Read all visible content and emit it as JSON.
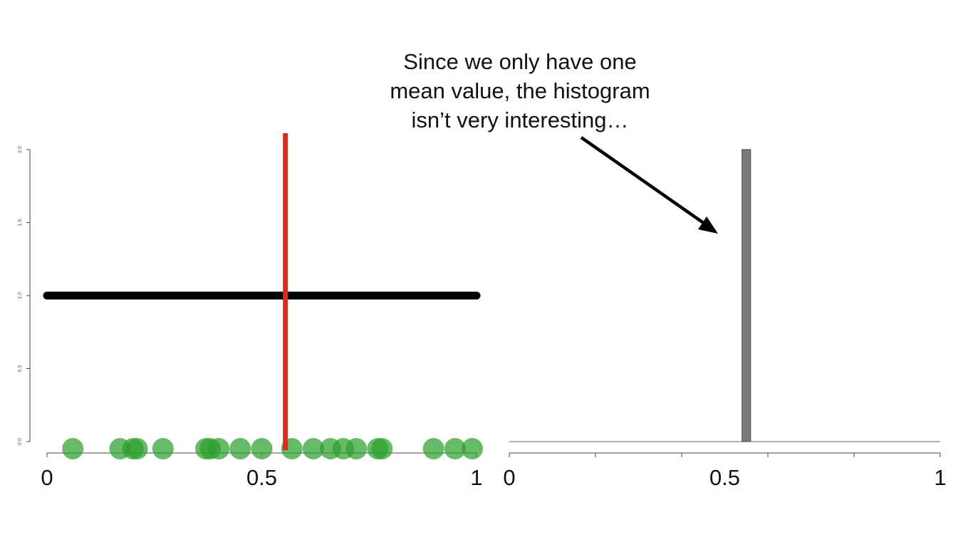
{
  "annotation": {
    "lines": [
      "Since we only have one",
      "mean value, the histogram",
      "isn’t very interesting…"
    ]
  },
  "colors": {
    "points": "#2ca02c",
    "mean_line": "#dd2a1b",
    "density_line": "#000000",
    "hist_bar": "#7a7a7a",
    "axis": "#444444",
    "arrow": "#000000"
  },
  "chart_data": [
    {
      "type": "scatter",
      "x": [
        0.06,
        0.17,
        0.2,
        0.21,
        0.27,
        0.37,
        0.38,
        0.4,
        0.45,
        0.5,
        0.57,
        0.62,
        0.66,
        0.69,
        0.72,
        0.77,
        0.78,
        0.9,
        0.95,
        0.99
      ],
      "y": [
        0,
        0,
        0,
        0,
        0,
        0,
        0,
        0,
        0,
        0,
        0,
        0,
        0,
        0,
        0,
        0,
        0,
        0,
        0,
        0
      ],
      "mean_line_x": 0.555,
      "density_line": {
        "x_start": 0,
        "x_end": 1,
        "y": 1.0
      },
      "xlim": [
        0,
        1
      ],
      "ylim": [
        0,
        2.0
      ],
      "xticks": [
        0,
        0.5,
        1
      ],
      "xtick_labels": [
        "0",
        "0.5",
        "1"
      ],
      "yticks": [
        0.0,
        0.5,
        1.0,
        1.5,
        2.0
      ],
      "ytick_labels": [
        "0.0",
        "0.5",
        "1.0",
        "1.5",
        "2.0"
      ]
    },
    {
      "type": "bar",
      "bars": [
        {
          "x_left": 0.54,
          "x_right": 0.56,
          "height": 1
        }
      ],
      "xlim": [
        0,
        1
      ],
      "ylim": [
        0,
        1
      ],
      "xticks": [
        0,
        0.2,
        0.4,
        0.6,
        0.8,
        1
      ],
      "labeled_xticks": [
        0,
        0.5,
        1
      ],
      "xtick_labels": [
        "0",
        "0.5",
        "1"
      ]
    }
  ]
}
